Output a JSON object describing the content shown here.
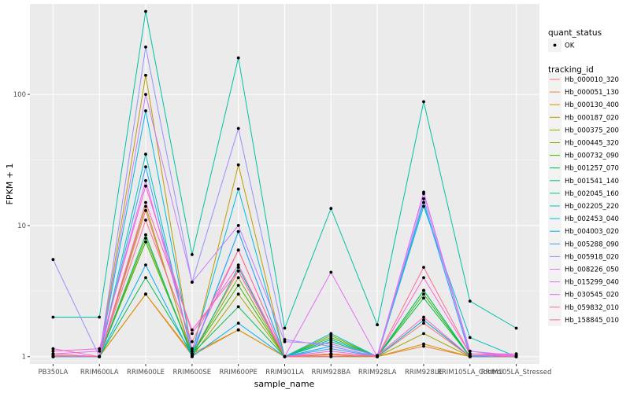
{
  "chart_data": {
    "type": "line",
    "title": "",
    "xlabel": "sample_name",
    "ylabel": "FPKM + 1",
    "y_scale": "log10",
    "ylim": [
      0.88,
      490
    ],
    "y_ticks": [
      1,
      10,
      100
    ],
    "y_tick_labels": [
      "1",
      "10",
      "100"
    ],
    "categories": [
      "PB350LA",
      "RRIM600LA",
      "RRIM600LE",
      "RRIM600SE",
      "RRIM600PE",
      "RRIM901LA",
      "RRIM928BA",
      "RRIM928LA",
      "RRIM928LE",
      "RRIM105LA_Control",
      "RRIM105LA_Stressed"
    ],
    "legend_shape": {
      "title": "quant_status",
      "entries": [
        "OK"
      ]
    },
    "legend_color_title": "tracking_id",
    "legend_position": "right",
    "grid": true,
    "series": [
      {
        "name": "Hb_000010_320",
        "color": "#F8766D",
        "values": [
          1.0,
          1.0,
          13.0,
          1.05,
          4.5,
          1.0,
          1.05,
          1.0,
          1.8,
          1.0,
          1.0
        ]
      },
      {
        "name": "Hb_000051_130",
        "color": "#EA8331",
        "values": [
          1.02,
          1.0,
          3.0,
          1.02,
          1.6,
          1.0,
          1.0,
          1.0,
          1.2,
          1.0,
          1.0
        ]
      },
      {
        "name": "Hb_000130_400",
        "color": "#D89000",
        "values": [
          1.0,
          1.0,
          3.0,
          1.05,
          1.6,
          1.0,
          1.03,
          1.0,
          1.25,
          1.0,
          1.0
        ]
      },
      {
        "name": "Hb_000187_020",
        "color": "#C09B00",
        "values": [
          1.0,
          1.0,
          140.0,
          1.05,
          29.0,
          1.0,
          1.05,
          1.0,
          1.9,
          1.0,
          1.0
        ]
      },
      {
        "name": "Hb_000375_200",
        "color": "#A3A500",
        "values": [
          1.0,
          1.0,
          14.0,
          1.0,
          3.0,
          1.0,
          1.0,
          1.0,
          1.5,
          1.0,
          1.0
        ]
      },
      {
        "name": "Hb_000445_320",
        "color": "#7CAE00",
        "values": [
          1.0,
          1.0,
          8.0,
          1.05,
          4.0,
          1.0,
          1.45,
          1.0,
          3.2,
          1.0,
          1.0
        ]
      },
      {
        "name": "Hb_000732_090",
        "color": "#39B600",
        "values": [
          1.0,
          1.0,
          7.5,
          1.05,
          3.5,
          1.0,
          1.4,
          1.0,
          3.0,
          1.0,
          1.0
        ]
      },
      {
        "name": "Hb_001257_070",
        "color": "#00BB4E",
        "values": [
          1.0,
          1.0,
          4.0,
          1.05,
          2.4,
          1.0,
          1.3,
          1.0,
          2.8,
          1.0,
          1.0
        ]
      },
      {
        "name": "Hb_001541_140",
        "color": "#00BF7D",
        "values": [
          1.0,
          1.0,
          8.5,
          1.0,
          4.8,
          1.0,
          1.35,
          1.0,
          3.2,
          1.0,
          1.0
        ]
      },
      {
        "name": "Hb_002045_160",
        "color": "#00C1A3",
        "values": [
          2.0,
          2.0,
          430.0,
          6.0,
          190.0,
          1.65,
          13.5,
          1.75,
          88.0,
          2.65,
          1.65
        ]
      },
      {
        "name": "Hb_002205_220",
        "color": "#00BFC4",
        "values": [
          1.0,
          1.0,
          35.0,
          1.02,
          9.0,
          1.0,
          1.5,
          1.0,
          14.0,
          1.4,
          1.0
        ]
      },
      {
        "name": "Hb_002453_040",
        "color": "#00BAE0",
        "values": [
          1.0,
          1.0,
          75.0,
          1.1,
          19.0,
          1.0,
          1.35,
          1.0,
          15.0,
          1.02,
          1.0
        ]
      },
      {
        "name": "Hb_004003_020",
        "color": "#00B0F6",
        "values": [
          1.0,
          1.0,
          5.0,
          1.0,
          1.8,
          1.0,
          1.2,
          1.0,
          1.9,
          1.0,
          1.0
        ]
      },
      {
        "name": "Hb_005288_090",
        "color": "#35A2FF",
        "values": [
          1.0,
          1.0,
          28.0,
          1.05,
          9.0,
          1.0,
          1.15,
          1.0,
          15.0,
          1.02,
          1.0
        ]
      },
      {
        "name": "Hb_005918_020",
        "color": "#9590FF",
        "values": [
          5.5,
          1.0,
          230.0,
          3.7,
          55.0,
          1.35,
          1.2,
          1.0,
          16.0,
          1.1,
          1.0
        ]
      },
      {
        "name": "Hb_008226_050",
        "color": "#C77CFF",
        "values": [
          1.0,
          1.0,
          100.0,
          3.7,
          10.0,
          1.3,
          1.25,
          1.02,
          17.5,
          1.1,
          1.02
        ]
      },
      {
        "name": "Hb_015299_040",
        "color": "#E76BF3",
        "values": [
          1.05,
          1.1,
          22.0,
          1.15,
          6.5,
          1.0,
          4.4,
          1.0,
          18.0,
          1.05,
          1.02
        ]
      },
      {
        "name": "Hb_030545_020",
        "color": "#FA62DB",
        "values": [
          1.1,
          1.15,
          20.0,
          1.5,
          5.0,
          1.0,
          1.1,
          1.0,
          4.0,
          1.05,
          1.05
        ]
      },
      {
        "name": "Hb_059832_010",
        "color": "#FF62BC",
        "values": [
          1.15,
          1.0,
          15.0,
          1.6,
          4.5,
          1.0,
          1.0,
          1.02,
          2.0,
          1.0,
          1.0
        ]
      },
      {
        "name": "Hb_158845_010",
        "color": "#FF6C91",
        "values": [
          1.05,
          1.0,
          11.0,
          1.3,
          6.5,
          1.0,
          1.05,
          1.0,
          4.8,
          1.05,
          1.0
        ]
      }
    ]
  }
}
